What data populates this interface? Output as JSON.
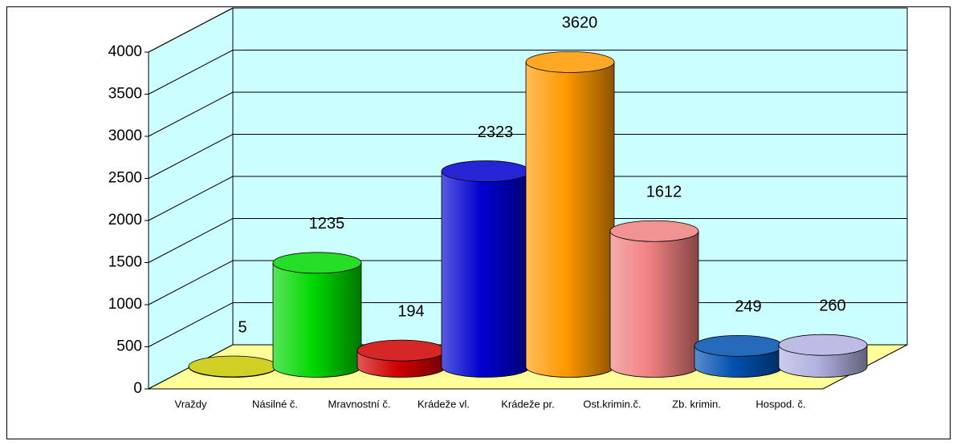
{
  "chart_data": {
    "type": "bar3d",
    "categories": [
      "Vraždy",
      "Násilné č.",
      "Mravnostní č.",
      "Krádeže vl.",
      "Krádeže pr.",
      "Ost.krimin.č.",
      "Zb. krimin.",
      "Hospod. č."
    ],
    "values": [
      5,
      1235,
      194,
      2323,
      3620,
      1612,
      249,
      260
    ],
    "colors": [
      "#c8c800",
      "#00d800",
      "#d00000",
      "#0000d0",
      "#ff9900",
      "#f08080",
      "#0050b0",
      "#b0b0e0"
    ],
    "ylim": [
      0,
      4000
    ],
    "yticks": [
      0,
      500,
      1000,
      1500,
      2000,
      2500,
      3000,
      3500,
      4000
    ],
    "grid": true
  }
}
